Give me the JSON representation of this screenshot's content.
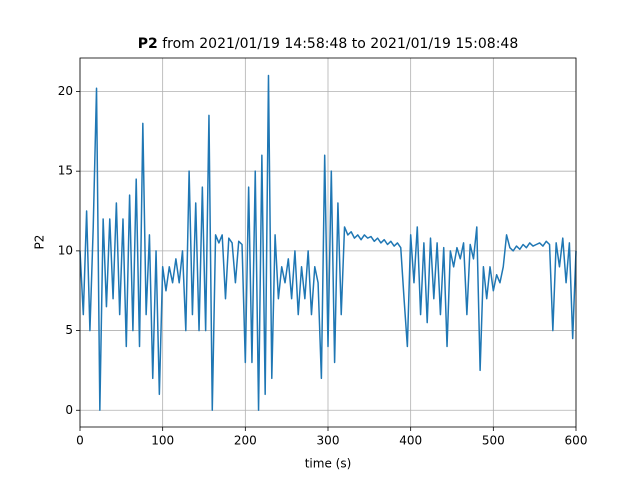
{
  "chart_data": {
    "type": "line",
    "title_bold": "P2",
    "title": "from 2021/01/19 14:58:48 to 2021/01/19 15:08:48",
    "xlabel": "time (s)",
    "ylabel": "P2",
    "xlim": [
      0,
      600
    ],
    "ylim": [
      -1.05,
      22.1
    ],
    "xticks": [
      0,
      100,
      200,
      300,
      400,
      500,
      600
    ],
    "yticks": [
      0,
      5,
      10,
      15,
      20
    ],
    "grid": true,
    "series": [
      {
        "color": "#1f77b4",
        "x": [
          0,
          4,
          8,
          12,
          16,
          20,
          24,
          28,
          32,
          36,
          40,
          44,
          48,
          52,
          56,
          60,
          64,
          68,
          72,
          76,
          80,
          84,
          88,
          92,
          96,
          100,
          104,
          108,
          112,
          116,
          120,
          124,
          128,
          132,
          136,
          140,
          144,
          148,
          152,
          156,
          160,
          164,
          168,
          172,
          176,
          180,
          184,
          188,
          192,
          196,
          200,
          204,
          208,
          212,
          216,
          220,
          224,
          228,
          232,
          236,
          240,
          244,
          248,
          252,
          256,
          260,
          264,
          268,
          272,
          276,
          280,
          284,
          288,
          292,
          296,
          300,
          304,
          308,
          312,
          316,
          320,
          324,
          328,
          332,
          336,
          340,
          344,
          348,
          352,
          356,
          360,
          364,
          368,
          372,
          376,
          380,
          384,
          388,
          392,
          396,
          400,
          404,
          408,
          412,
          416,
          420,
          424,
          428,
          432,
          436,
          440,
          444,
          448,
          452,
          456,
          460,
          464,
          468,
          472,
          476,
          480,
          484,
          488,
          492,
          496,
          500,
          504,
          508,
          512,
          516,
          520,
          524,
          528,
          532,
          536,
          540,
          544,
          548,
          552,
          556,
          560,
          564,
          568,
          572,
          576,
          580,
          584,
          588,
          592,
          596,
          600
        ],
        "values": [
          10,
          6,
          12.5,
          5,
          11.5,
          20.2,
          0,
          12,
          6.5,
          12,
          7,
          13,
          6,
          12,
          4,
          13.5,
          5,
          14.5,
          4,
          18,
          6,
          11,
          2,
          10,
          1,
          9,
          7.5,
          9,
          8,
          9.5,
          8,
          10,
          5,
          15,
          6,
          13,
          5,
          14,
          5,
          18.5,
          0,
          11,
          10.5,
          11,
          7,
          10.8,
          10.5,
          8,
          10.6,
          10.4,
          3,
          14,
          3,
          15,
          0,
          16,
          1,
          21,
          2,
          11,
          7,
          9,
          8,
          9.5,
          7,
          10,
          6,
          9,
          7,
          10,
          6,
          9,
          8,
          2,
          16,
          4,
          15,
          3,
          13,
          6,
          11.5,
          11,
          11.2,
          10.8,
          11,
          10.7,
          11,
          10.8,
          10.9,
          10.6,
          10.8,
          10.5,
          10.7,
          10.4,
          10.6,
          10.3,
          10.5,
          10.2,
          7,
          4,
          11,
          8,
          11.5,
          6,
          10.5,
          5.5,
          10.8,
          7,
          10.5,
          6,
          10.2,
          4,
          10,
          9,
          10.2,
          9.5,
          10.5,
          6,
          10.4,
          9.5,
          11.5,
          2.5,
          9,
          7,
          9,
          7.5,
          8.5,
          8,
          9,
          11,
          10.2,
          10,
          10.3,
          10.1,
          10.4,
          10.2,
          10.5,
          10.3,
          10.4,
          10.5,
          10.3,
          10.6,
          10.4,
          5,
          10.5,
          9,
          10.8,
          8,
          10.5,
          4.5,
          10
        ]
      }
    ]
  }
}
